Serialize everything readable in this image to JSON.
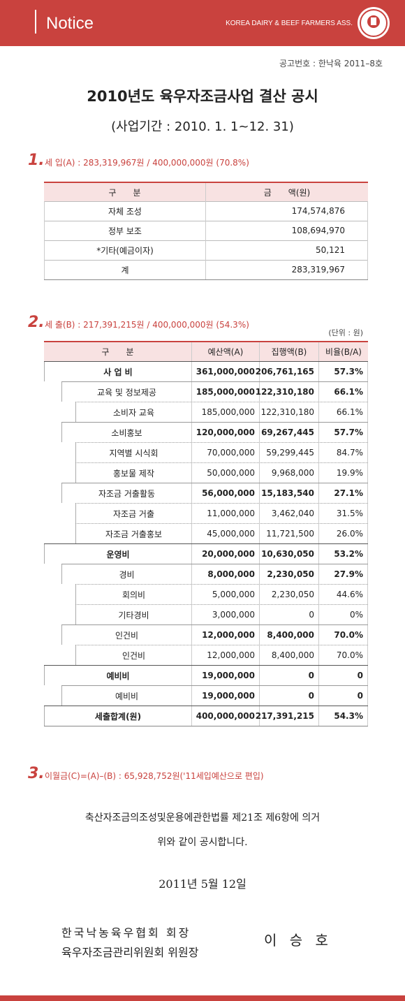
{
  "header": {
    "title": "Notice",
    "org": "KOREA DAIRY & BEEF FARMERS ASS."
  },
  "notice_no": "공고번호 : 한낙육 2011–8호",
  "title": "2010년도 육우자조금사업 결산 공시",
  "subtitle": "(사업기간 : 2010. 1. 1~12. 31)",
  "section1": {
    "number": "1.",
    "heading": "세 입(A) : 283,319,967원 / 400,000,000원 (70.8%)",
    "table": {
      "headers": [
        "구　　분",
        "금　　액(원)"
      ],
      "rows": [
        [
          "자체 조성",
          "174,574,876"
        ],
        [
          "정부 보조",
          "108,694,970"
        ],
        [
          "*기타(예금이자)",
          "50,121"
        ],
        [
          "계",
          "283,319,967"
        ]
      ]
    }
  },
  "section2": {
    "number": "2.",
    "heading": "세 출(B) : 217,391,215원 / 400,000,000원 (54.3%)",
    "unit": "(단위 : 원)",
    "table": {
      "headers": [
        "구　　분",
        "예산액(A)",
        "집행액(B)",
        "비율(B/A)"
      ],
      "groups": [
        {
          "cells": [
            "사 업 비",
            "361,000,000",
            "206,761,165",
            "57.3%"
          ],
          "items": [
            {
              "cells": [
                "교육 및 정보제공",
                "185,000,000",
                "122,310,180",
                "66.1%"
              ],
              "items": [
                {
                  "cells": [
                    "소비자 교육",
                    "185,000,000",
                    "122,310,180",
                    "66.1%"
                  ]
                }
              ]
            },
            {
              "cells": [
                "소비홍보",
                "120,000,000",
                "69,267,445",
                "57.7%"
              ],
              "items": [
                {
                  "cells": [
                    "지역별 시식회",
                    "70,000,000",
                    "59,299,445",
                    "84.7%"
                  ]
                },
                {
                  "cells": [
                    "홍보물 제작",
                    "50,000,000",
                    "9,968,000",
                    "19.9%"
                  ]
                }
              ]
            },
            {
              "cells": [
                "자조금 거출활동",
                "56,000,000",
                "15,183,540",
                "27.1%"
              ],
              "items": [
                {
                  "cells": [
                    "자조금 거출",
                    "11,000,000",
                    "3,462,040",
                    "31.5%"
                  ]
                },
                {
                  "cells": [
                    "자조금 거출홍보",
                    "45,000,000",
                    "11,721,500",
                    "26.0%"
                  ]
                }
              ]
            }
          ]
        },
        {
          "cells": [
            "운영비",
            "20,000,000",
            "10,630,050",
            "53.2%"
          ],
          "items": [
            {
              "cells": [
                "경비",
                "8,000,000",
                "2,230,050",
                "27.9%"
              ],
              "items": [
                {
                  "cells": [
                    "회의비",
                    "5,000,000",
                    "2,230,050",
                    "44.6%"
                  ]
                },
                {
                  "cells": [
                    "기타경비",
                    "3,000,000",
                    "0",
                    "0%"
                  ]
                }
              ]
            },
            {
              "cells": [
                "인건비",
                "12,000,000",
                "8,400,000",
                "70.0%"
              ],
              "items": [
                {
                  "cells": [
                    "인건비",
                    "12,000,000",
                    "8,400,000",
                    "70.0%"
                  ]
                }
              ]
            }
          ]
        },
        {
          "cells": [
            "예비비",
            "19,000,000",
            "0",
            "0"
          ],
          "items": [
            {
              "cells": [
                "예비비",
                "19,000,000",
                "0",
                "0"
              ]
            }
          ]
        }
      ],
      "total": [
        "세출합계(원)",
        "400,000,000",
        "217,391,215",
        "54.3%"
      ]
    }
  },
  "section3": {
    "number": "3.",
    "heading": "이월금(C)=(A)–(B) : 65,928,752원('11세입예산으로 편입)"
  },
  "closing": {
    "lines": [
      "축산자조금의조성및운용에관한법률 제21조 제6항에 의거",
      "위와 같이 공시합니다."
    ],
    "date": "2011년  5월  12일",
    "signers": [
      "한국낙농육우협회  회장",
      "육우자조금관리위원회 위원장"
    ],
    "name": "이 승 호"
  }
}
